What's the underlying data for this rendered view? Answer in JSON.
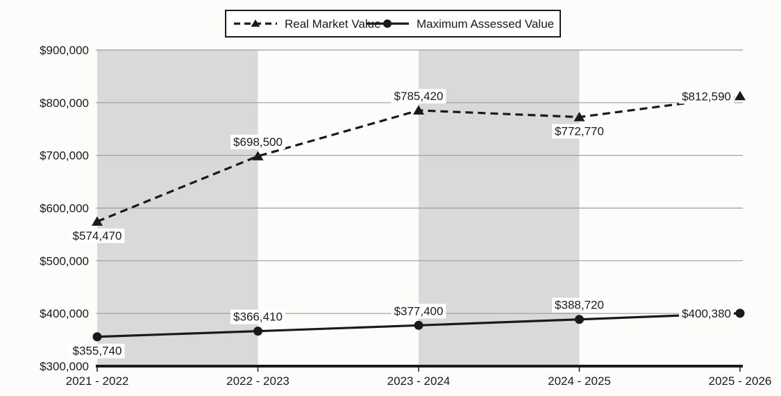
{
  "chart_data": {
    "type": "line",
    "title": "",
    "categories": [
      "2021 - 2022",
      "2022 - 2023",
      "2023 - 2024",
      "2024 - 2025",
      "2025 - 2026"
    ],
    "series": [
      {
        "name": "Real Market Value",
        "values": [
          574470,
          698500,
          785420,
          772770,
          812590
        ],
        "point_labels": [
          "$574,470",
          "$698,500",
          "$785,420",
          "$772,770",
          "$812,590"
        ],
        "label_positions": [
          "below",
          "above",
          "above",
          "below",
          "left"
        ],
        "line_style": "dashed",
        "marker": "triangle",
        "color": "#1a1a1a"
      },
      {
        "name": "Maximum Assessed Value",
        "values": [
          355740,
          366410,
          377400,
          388720,
          400380
        ],
        "point_labels": [
          "$355,740",
          "$366,410",
          "$377,400",
          "$388,720",
          "$400,380"
        ],
        "label_positions": [
          "below",
          "above",
          "above",
          "above",
          "left"
        ],
        "line_style": "solid",
        "marker": "circle",
        "color": "#1a1a1a"
      }
    ],
    "y_axis": {
      "min": 300000,
      "max": 900000,
      "tick_interval": 100000,
      "tick_labels": [
        "$300,000",
        "$400,000",
        "$500,000",
        "$600,000",
        "$700,000",
        "$800,000",
        "$900,000"
      ]
    },
    "legend": {
      "position": "top",
      "entries": [
        "Real Market Value",
        "Maximum Assessed Value"
      ]
    },
    "grid": "horizontal",
    "plot_bands": {
      "color": "#d9d9d9",
      "category_spans": [
        [
          0,
          1
        ],
        [
          2,
          3
        ]
      ]
    },
    "colors": {
      "line": "#1a1a1a",
      "gridline": "#9b9b9b",
      "axis": "#1a1a1a",
      "band": "#d9d9d9",
      "label_background": "#ffffff",
      "page_background": "#fcfcfb"
    }
  }
}
